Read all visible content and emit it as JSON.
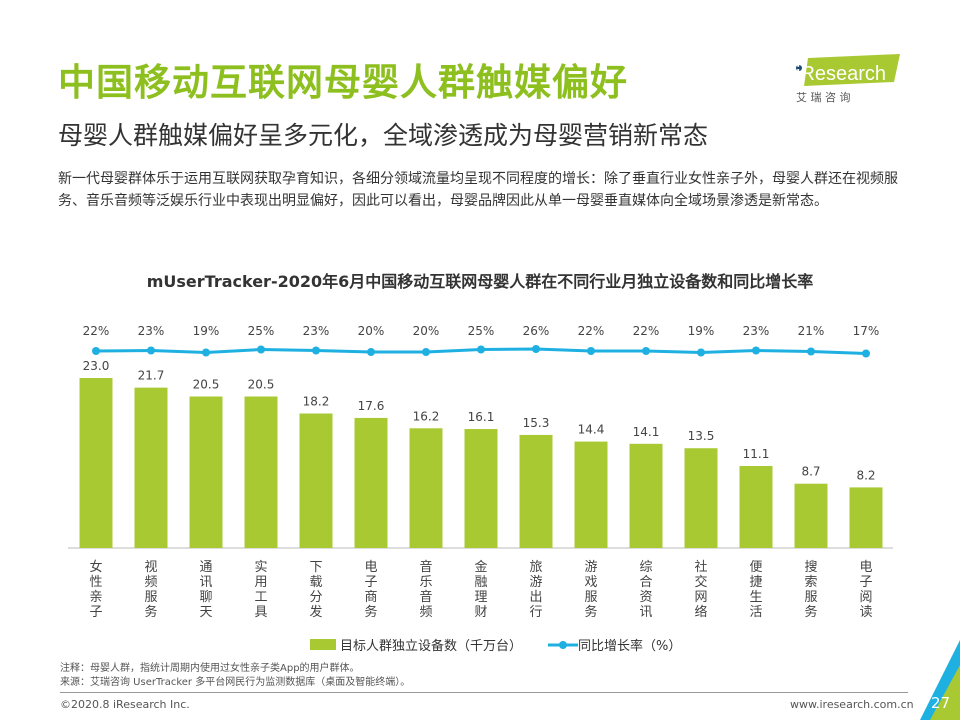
{
  "header": {
    "title": "中国移动互联网母婴人群触媒偏好",
    "subtitle": "母婴人群触媒偏好呈多元化，全域渗透成为母婴营销新常态",
    "description": "新一代母婴群体乐于运用互联网获取孕育知识，各细分领域流量均呈现不同程度的增长：除了垂直行业女性亲子外，母婴人群还在视频服务、音乐音频等泛娱乐行业中表现出明显偏好，因此可以看出，母婴品牌因此从单一母婴垂直媒体向全域场景渗透是新常态。"
  },
  "logo": {
    "text": "iResearch",
    "sub": "艾 瑞 咨 询"
  },
  "chart_data": {
    "type": "bar+line",
    "title": "mUserTracker-2020年6月中国移动互联网母婴人群在不同行业月独立设备数和同比增长率",
    "categories": [
      "女性亲子",
      "视频服务",
      "通讯聊天",
      "实用工具",
      "下载分发",
      "电子商务",
      "音乐音频",
      "金融理财",
      "旅游出行",
      "游戏服务",
      "综合资讯",
      "社交网络",
      "便捷生活",
      "搜索服务",
      "电子阅读"
    ],
    "series": [
      {
        "name": "目标人群独立设备数（千万台）",
        "type": "bar",
        "color": "#a8c932",
        "values": [
          23.0,
          21.7,
          20.5,
          20.5,
          18.2,
          17.6,
          16.2,
          16.1,
          15.3,
          14.4,
          14.1,
          13.5,
          11.1,
          8.7,
          8.2
        ]
      },
      {
        "name": "同比增长率（%）",
        "type": "line",
        "color": "#1fb0e2",
        "values": [
          22,
          23,
          19,
          25,
          23,
          20,
          20,
          25,
          26,
          22,
          22,
          19,
          23,
          21,
          17
        ]
      }
    ],
    "legend": "bottom"
  },
  "footer": {
    "note": "注释：母婴人群，指统计周期内使用过女性亲子类App的用户群体。",
    "source": "来源：艾瑞咨询 UserTracker 多平台网民行为监测数据库（桌面及智能终端）。",
    "copyright": "©2020.8 iResearch Inc.",
    "site": "www.iresearch.com.cn",
    "page": "27"
  }
}
